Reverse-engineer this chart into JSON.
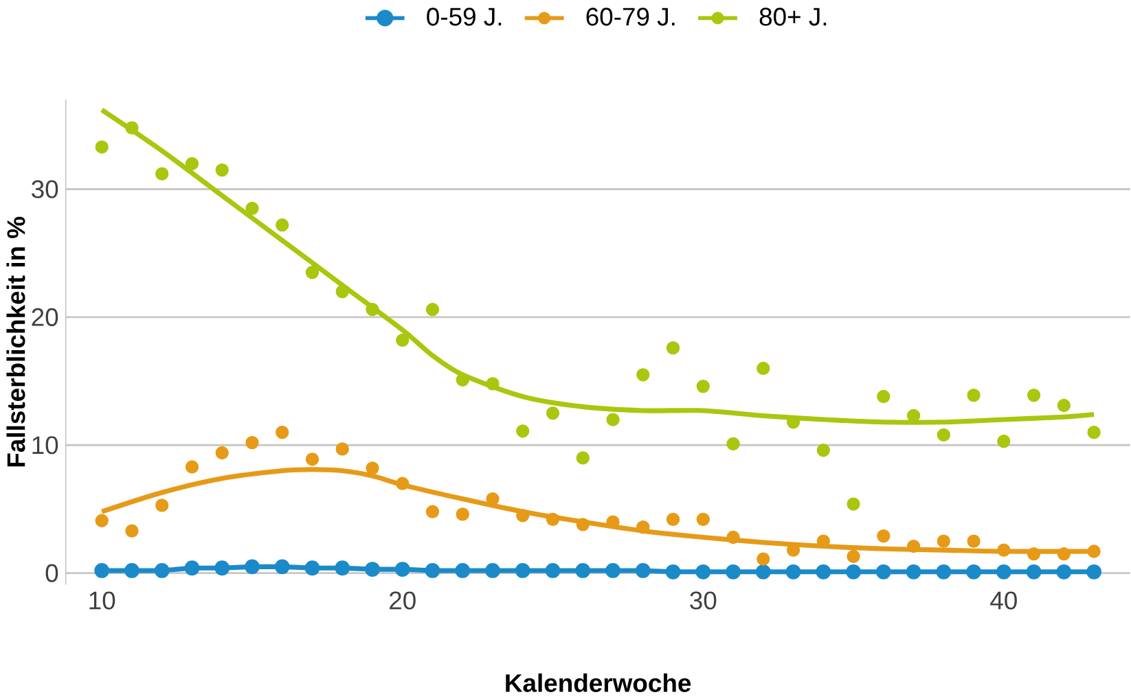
{
  "chart_data": {
    "type": "scatter",
    "xlabel": "Kalenderwoche",
    "ylabel": "Fallsterblichkeit in %",
    "x": [
      10,
      11,
      12,
      13,
      14,
      15,
      16,
      17,
      18,
      19,
      20,
      21,
      22,
      23,
      24,
      25,
      26,
      27,
      28,
      29,
      30,
      31,
      32,
      33,
      34,
      35,
      36,
      37,
      38,
      39,
      40,
      41,
      42,
      43
    ],
    "series": [
      {
        "name": "0-59 J.",
        "type": "line",
        "color": "#1b8ac9",
        "values": [
          0.2,
          0.2,
          0.2,
          0.4,
          0.4,
          0.5,
          0.5,
          0.4,
          0.4,
          0.3,
          0.3,
          0.2,
          0.2,
          0.2,
          0.2,
          0.2,
          0.2,
          0.2,
          0.2,
          0.1,
          0.1,
          0.1,
          0.1,
          0.1,
          0.1,
          0.1,
          0.1,
          0.1,
          0.1,
          0.1,
          0.1,
          0.1,
          0.1,
          0.1
        ]
      },
      {
        "name": "60-79 J.",
        "color": "#e69a17",
        "values": [
          4.1,
          3.3,
          5.3,
          8.3,
          9.4,
          10.2,
          11.0,
          8.9,
          9.7,
          8.2,
          7.0,
          4.8,
          4.6,
          5.8,
          4.5,
          4.2,
          3.8,
          4.0,
          3.6,
          4.2,
          4.2,
          2.8,
          1.1,
          1.8,
          2.5,
          1.3,
          2.9,
          2.1,
          2.5,
          2.5,
          1.8,
          1.5,
          1.5,
          1.7
        ]
      },
      {
        "name": "80+ J.",
        "color": "#a8c70e",
        "values": [
          33.3,
          34.8,
          31.2,
          32.0,
          31.5,
          28.5,
          27.2,
          23.5,
          22.0,
          20.6,
          18.2,
          20.6,
          15.1,
          14.8,
          11.1,
          12.5,
          9.0,
          12.0,
          15.5,
          17.6,
          14.6,
          10.1,
          16.0,
          11.8,
          9.6,
          5.4,
          13.8,
          12.3,
          10.8,
          13.9,
          10.3,
          13.9,
          13.1,
          11.0
        ]
      },
      {
        "type": "line",
        "marker": "none",
        "color": "#e69a17",
        "x": [
          10,
          12,
          14,
          16,
          17,
          18,
          19,
          20,
          22,
          24,
          26,
          28,
          30,
          32,
          34,
          36,
          38,
          40,
          43
        ],
        "values": [
          4.8,
          6.3,
          7.4,
          8.0,
          8.1,
          8.0,
          7.6,
          6.9,
          5.8,
          4.8,
          4.0,
          3.3,
          2.8,
          2.4,
          2.1,
          1.9,
          1.8,
          1.7,
          1.7
        ]
      },
      {
        "type": "line",
        "marker": "none",
        "color": "#a8c70e",
        "x": [
          10,
          12,
          14,
          16,
          18,
          20,
          21,
          22,
          24,
          26,
          28,
          30,
          32,
          34,
          36,
          38,
          40,
          42,
          43
        ],
        "values": [
          36.2,
          33.0,
          29.5,
          26.0,
          22.5,
          19.0,
          17.0,
          15.5,
          13.8,
          13.0,
          12.7,
          12.7,
          12.3,
          12.0,
          11.8,
          11.8,
          12.0,
          12.2,
          12.4
        ]
      }
    ],
    "marker": "circle",
    "legend": "top",
    "grid": "y",
    "xlim": [
      8.8,
      44.2
    ],
    "xticks": [
      10,
      20,
      30,
      40
    ],
    "ylim": [
      -0.9,
      37
    ],
    "yticks": [
      0,
      10,
      20,
      30
    ]
  }
}
